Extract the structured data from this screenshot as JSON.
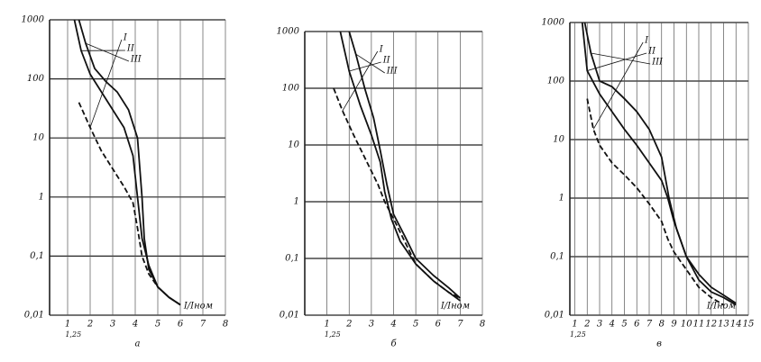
{
  "chart_data": [
    {
      "type": "line",
      "subtitle": "а",
      "xlabel": "I/Iном",
      "ylog": true,
      "grid": true,
      "color": "#111",
      "xlim": [
        0.2,
        8
      ],
      "xticks": [
        1,
        2,
        3,
        4,
        5,
        6,
        7,
        8
      ],
      "ylim": [
        0.01,
        1000
      ],
      "yticks": [
        {
          "value": 0.01,
          "label": "0,01"
        },
        {
          "value": 0.1,
          "label": "0,1"
        },
        1,
        10,
        100,
        1000
      ],
      "annotations": [
        {
          "text": "1,25",
          "x": 1.25
        }
      ],
      "series": [
        {
          "name": "I",
          "color": "#111",
          "dash": true,
          "x": [
            1.5,
            2,
            2.5,
            3,
            3.5,
            3.9,
            4.1,
            4.3,
            4.6,
            5,
            5.5,
            6
          ],
          "values": [
            40,
            15,
            6,
            3,
            1.5,
            0.8,
            0.3,
            0.1,
            0.05,
            0.03,
            0.02,
            0.015
          ]
        },
        {
          "name": "II",
          "color": "#111",
          "dash": false,
          "x": [
            1.3,
            1.6,
            2,
            2.5,
            3,
            3.5,
            3.9,
            4.1,
            4.3,
            4.6,
            5,
            5.5,
            6
          ],
          "values": [
            1000,
            300,
            120,
            60,
            30,
            15,
            5,
            1,
            0.2,
            0.07,
            0.03,
            0.02,
            0.015
          ]
        },
        {
          "name": "III",
          "color": "#111",
          "dash": false,
          "x": [
            1.5,
            1.8,
            2.2,
            2.7,
            3.2,
            3.7,
            4.1,
            4.3,
            4.4,
            4.6,
            5,
            5.5,
            6
          ],
          "values": [
            1000,
            400,
            150,
            90,
            60,
            30,
            10,
            1,
            0.2,
            0.06,
            0.03,
            0.02,
            0.015
          ]
        }
      ]
    },
    {
      "type": "line",
      "subtitle": "б",
      "xlabel": "I/Iном",
      "ylog": true,
      "grid": true,
      "color": "#111",
      "xlim": [
        0,
        8
      ],
      "xticks": [
        1,
        2,
        3,
        4,
        5,
        6,
        7,
        8
      ],
      "ylim": [
        0.01,
        1000
      ],
      "yticks": [
        {
          "value": 0.01,
          "label": "0,01"
        },
        {
          "value": 0.1,
          "label": "0,1"
        },
        1,
        10,
        100,
        1000
      ],
      "annotations": [
        {
          "text": "1,25",
          "x": 1.25
        }
      ],
      "series": [
        {
          "name": "I",
          "color": "#111",
          "dash": true,
          "x": [
            1.3,
            1.7,
            2.2,
            2.8,
            3.3,
            3.6,
            4,
            4.5,
            5,
            5.8,
            6.5,
            7
          ],
          "values": [
            100,
            40,
            15,
            5,
            2,
            1,
            0.5,
            0.2,
            0.08,
            0.04,
            0.025,
            0.02
          ]
        },
        {
          "name": "II",
          "color": "#111",
          "dash": false,
          "x": [
            1.6,
            2,
            2.5,
            3,
            3.4,
            3.6,
            3.9,
            4.3,
            5,
            5.8,
            6.5,
            7
          ],
          "values": [
            1000,
            200,
            50,
            15,
            5,
            1.5,
            0.5,
            0.2,
            0.08,
            0.04,
            0.025,
            0.018
          ]
        },
        {
          "name": "III",
          "color": "#111",
          "dash": false,
          "x": [
            2,
            2.3,
            2.7,
            3.1,
            3.4,
            3.7,
            4,
            4.5,
            5,
            5.8,
            6.5,
            7
          ],
          "values": [
            1000,
            400,
            100,
            30,
            8,
            2,
            0.6,
            0.25,
            0.1,
            0.05,
            0.03,
            0.02
          ]
        }
      ]
    },
    {
      "type": "line",
      "subtitle": "в",
      "xlabel": "I/Iном",
      "ylog": true,
      "grid": true,
      "color": "#111",
      "xlim": [
        0.6,
        15
      ],
      "xticks": [
        1,
        2,
        3,
        4,
        5,
        6,
        7,
        8,
        9,
        10,
        11,
        12,
        13,
        14,
        15
      ],
      "ylim": [
        0.01,
        1000
      ],
      "yticks": [
        {
          "value": 0.01,
          "label": "0,01"
        },
        {
          "value": 0.1,
          "label": "0,1"
        },
        1,
        10,
        100,
        1000
      ],
      "annotations": [
        {
          "text": "1,25",
          "x": 1.25
        }
      ],
      "series": [
        {
          "name": "I",
          "color": "#111",
          "dash": true,
          "x": [
            2,
            2.5,
            3,
            4,
            5,
            6,
            7,
            8,
            8.5,
            9,
            10,
            11,
            12,
            13
          ],
          "values": [
            50,
            15,
            8,
            4,
            2.5,
            1.5,
            0.8,
            0.4,
            0.2,
            0.12,
            0.06,
            0.03,
            0.02,
            0.015
          ]
        },
        {
          "name": "II",
          "color": "#111",
          "dash": false,
          "x": [
            1.6,
            2,
            3,
            4,
            5,
            6,
            7,
            8,
            8.5,
            9,
            10,
            11,
            12,
            13,
            14
          ],
          "values": [
            1000,
            150,
            60,
            30,
            15,
            8,
            4,
            2,
            1,
            0.4,
            0.1,
            0.04,
            0.025,
            0.02,
            0.015
          ]
        },
        {
          "name": "III",
          "color": "#111",
          "dash": false,
          "x": [
            1.8,
            2.3,
            3,
            4,
            5,
            6,
            7,
            8,
            8.6,
            9.2,
            10,
            11,
            12,
            13,
            14
          ],
          "values": [
            1000,
            300,
            100,
            80,
            50,
            30,
            15,
            5,
            1,
            0.3,
            0.1,
            0.05,
            0.03,
            0.022,
            0.016
          ]
        }
      ]
    }
  ]
}
